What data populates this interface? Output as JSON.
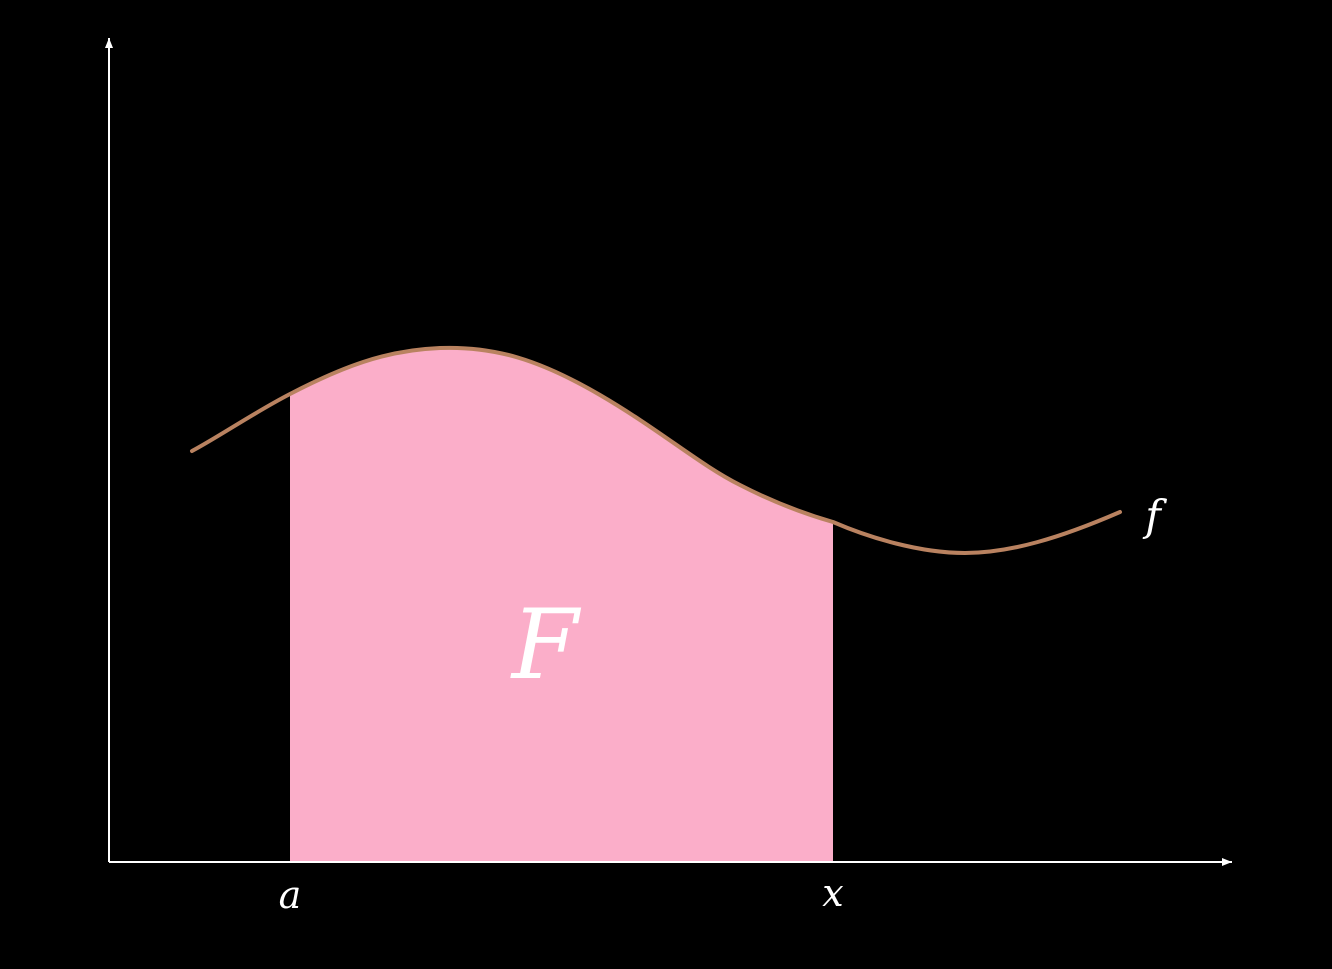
{
  "diagram": {
    "labels": {
      "lower_bound": "a",
      "upper_bound": "x",
      "function_name": "f",
      "area_name": "F"
    },
    "colors": {
      "background": "#000000",
      "axes": "#ffffff",
      "curve": "#b98260",
      "area_fill": "#fbaec9",
      "text": "#ffffff"
    }
  }
}
